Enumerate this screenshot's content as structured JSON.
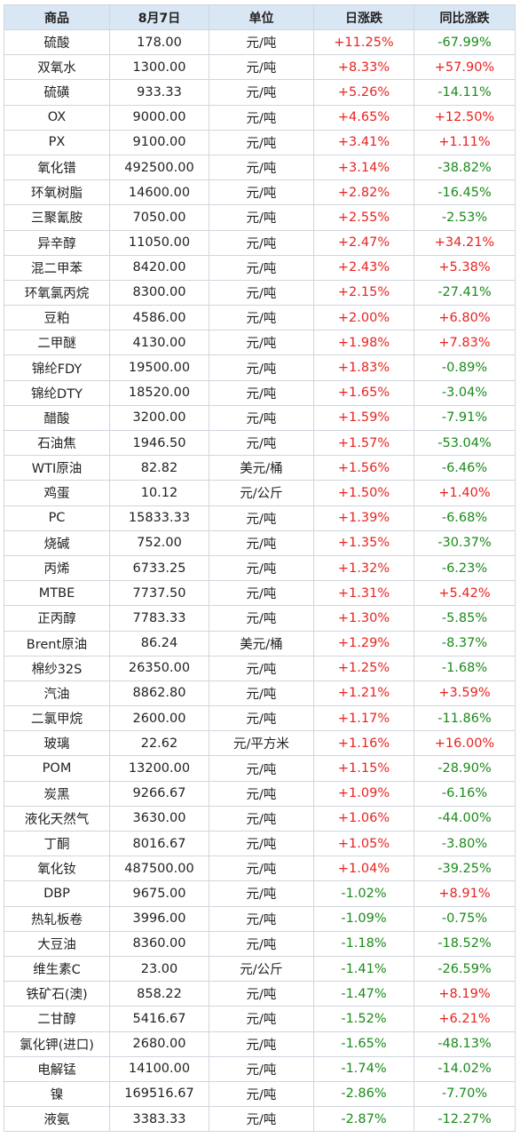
{
  "colors": {
    "up": "#e8231f",
    "down": "#1a8a1a",
    "header_bg": "#d9e6f3",
    "border": "#cfd6de"
  },
  "headers": {
    "product": "商品",
    "date": "8月7日",
    "unit": "单位",
    "daily_change": "日涨跌",
    "yoy_change": "同比涨跌"
  },
  "rows": [
    {
      "name": "硫酸",
      "price": "178.00",
      "unit": "元/吨",
      "daily": "+11.25%",
      "yoy": "-67.99%"
    },
    {
      "name": "双氧水",
      "price": "1300.00",
      "unit": "元/吨",
      "daily": "+8.33%",
      "yoy": "+57.90%"
    },
    {
      "name": "硫磺",
      "price": "933.33",
      "unit": "元/吨",
      "daily": "+5.26%",
      "yoy": "-14.11%"
    },
    {
      "name": "OX",
      "price": "9000.00",
      "unit": "元/吨",
      "daily": "+4.65%",
      "yoy": "+12.50%"
    },
    {
      "name": "PX",
      "price": "9100.00",
      "unit": "元/吨",
      "daily": "+3.41%",
      "yoy": "+1.11%"
    },
    {
      "name": "氧化镨",
      "price": "492500.00",
      "unit": "元/吨",
      "daily": "+3.14%",
      "yoy": "-38.82%"
    },
    {
      "name": "环氧树脂",
      "price": "14600.00",
      "unit": "元/吨",
      "daily": "+2.82%",
      "yoy": "-16.45%"
    },
    {
      "name": "三聚氰胺",
      "price": "7050.00",
      "unit": "元/吨",
      "daily": "+2.55%",
      "yoy": "-2.53%"
    },
    {
      "name": "异辛醇",
      "price": "11050.00",
      "unit": "元/吨",
      "daily": "+2.47%",
      "yoy": "+34.21%"
    },
    {
      "name": "混二甲苯",
      "price": "8420.00",
      "unit": "元/吨",
      "daily": "+2.43%",
      "yoy": "+5.38%"
    },
    {
      "name": "环氧氯丙烷",
      "price": "8300.00",
      "unit": "元/吨",
      "daily": "+2.15%",
      "yoy": "-27.41%"
    },
    {
      "name": "豆粕",
      "price": "4586.00",
      "unit": "元/吨",
      "daily": "+2.00%",
      "yoy": "+6.80%"
    },
    {
      "name": "二甲醚",
      "price": "4130.00",
      "unit": "元/吨",
      "daily": "+1.98%",
      "yoy": "+7.83%"
    },
    {
      "name": "锦纶FDY",
      "price": "19500.00",
      "unit": "元/吨",
      "daily": "+1.83%",
      "yoy": "-0.89%"
    },
    {
      "name": "锦纶DTY",
      "price": "18520.00",
      "unit": "元/吨",
      "daily": "+1.65%",
      "yoy": "-3.04%"
    },
    {
      "name": "醋酸",
      "price": "3200.00",
      "unit": "元/吨",
      "daily": "+1.59%",
      "yoy": "-7.91%"
    },
    {
      "name": "石油焦",
      "price": "1946.50",
      "unit": "元/吨",
      "daily": "+1.57%",
      "yoy": "-53.04%"
    },
    {
      "name": "WTI原油",
      "price": "82.82",
      "unit": "美元/桶",
      "daily": "+1.56%",
      "yoy": "-6.46%"
    },
    {
      "name": "鸡蛋",
      "price": "10.12",
      "unit": "元/公斤",
      "daily": "+1.50%",
      "yoy": "+1.40%"
    },
    {
      "name": "PC",
      "price": "15833.33",
      "unit": "元/吨",
      "daily": "+1.39%",
      "yoy": "-6.68%"
    },
    {
      "name": "烧碱",
      "price": "752.00",
      "unit": "元/吨",
      "daily": "+1.35%",
      "yoy": "-30.37%"
    },
    {
      "name": "丙烯",
      "price": "6733.25",
      "unit": "元/吨",
      "daily": "+1.32%",
      "yoy": "-6.23%"
    },
    {
      "name": "MTBE",
      "price": "7737.50",
      "unit": "元/吨",
      "daily": "+1.31%",
      "yoy": "+5.42%"
    },
    {
      "name": "正丙醇",
      "price": "7783.33",
      "unit": "元/吨",
      "daily": "+1.30%",
      "yoy": "-5.85%"
    },
    {
      "name": "Brent原油",
      "price": "86.24",
      "unit": "美元/桶",
      "daily": "+1.29%",
      "yoy": "-8.37%"
    },
    {
      "name": "棉纱32S",
      "price": "26350.00",
      "unit": "元/吨",
      "daily": "+1.25%",
      "yoy": "-1.68%"
    },
    {
      "name": "汽油",
      "price": "8862.80",
      "unit": "元/吨",
      "daily": "+1.21%",
      "yoy": "+3.59%"
    },
    {
      "name": "二氯甲烷",
      "price": "2600.00",
      "unit": "元/吨",
      "daily": "+1.17%",
      "yoy": "-11.86%"
    },
    {
      "name": "玻璃",
      "price": "22.62",
      "unit": "元/平方米",
      "daily": "+1.16%",
      "yoy": "+16.00%"
    },
    {
      "name": "POM",
      "price": "13200.00",
      "unit": "元/吨",
      "daily": "+1.15%",
      "yoy": "-28.90%"
    },
    {
      "name": "炭黑",
      "price": "9266.67",
      "unit": "元/吨",
      "daily": "+1.09%",
      "yoy": "-6.16%"
    },
    {
      "name": "液化天然气",
      "price": "3630.00",
      "unit": "元/吨",
      "daily": "+1.06%",
      "yoy": "-44.00%"
    },
    {
      "name": "丁酮",
      "price": "8016.67",
      "unit": "元/吨",
      "daily": "+1.05%",
      "yoy": "-3.80%"
    },
    {
      "name": "氧化钕",
      "price": "487500.00",
      "unit": "元/吨",
      "daily": "+1.04%",
      "yoy": "-39.25%"
    },
    {
      "name": "DBP",
      "price": "9675.00",
      "unit": "元/吨",
      "daily": "-1.02%",
      "yoy": "+8.91%"
    },
    {
      "name": "热轧板卷",
      "price": "3996.00",
      "unit": "元/吨",
      "daily": "-1.09%",
      "yoy": "-0.75%"
    },
    {
      "name": "大豆油",
      "price": "8360.00",
      "unit": "元/吨",
      "daily": "-1.18%",
      "yoy": "-18.52%"
    },
    {
      "name": "维生素C",
      "price": "23.00",
      "unit": "元/公斤",
      "daily": "-1.41%",
      "yoy": "-26.59%"
    },
    {
      "name": "铁矿石(澳)",
      "price": "858.22",
      "unit": "元/吨",
      "daily": "-1.47%",
      "yoy": "+8.19%"
    },
    {
      "name": "二甘醇",
      "price": "5416.67",
      "unit": "元/吨",
      "daily": "-1.52%",
      "yoy": "+6.21%"
    },
    {
      "name": "氯化钾(进口)",
      "price": "2680.00",
      "unit": "元/吨",
      "daily": "-1.65%",
      "yoy": "-48.13%"
    },
    {
      "name": "电解锰",
      "price": "14100.00",
      "unit": "元/吨",
      "daily": "-1.74%",
      "yoy": "-14.02%"
    },
    {
      "name": "镍",
      "price": "169516.67",
      "unit": "元/吨",
      "daily": "-2.86%",
      "yoy": "-7.70%"
    },
    {
      "name": "液氨",
      "price": "3383.33",
      "unit": "元/吨",
      "daily": "-2.87%",
      "yoy": "-12.27%"
    }
  ]
}
